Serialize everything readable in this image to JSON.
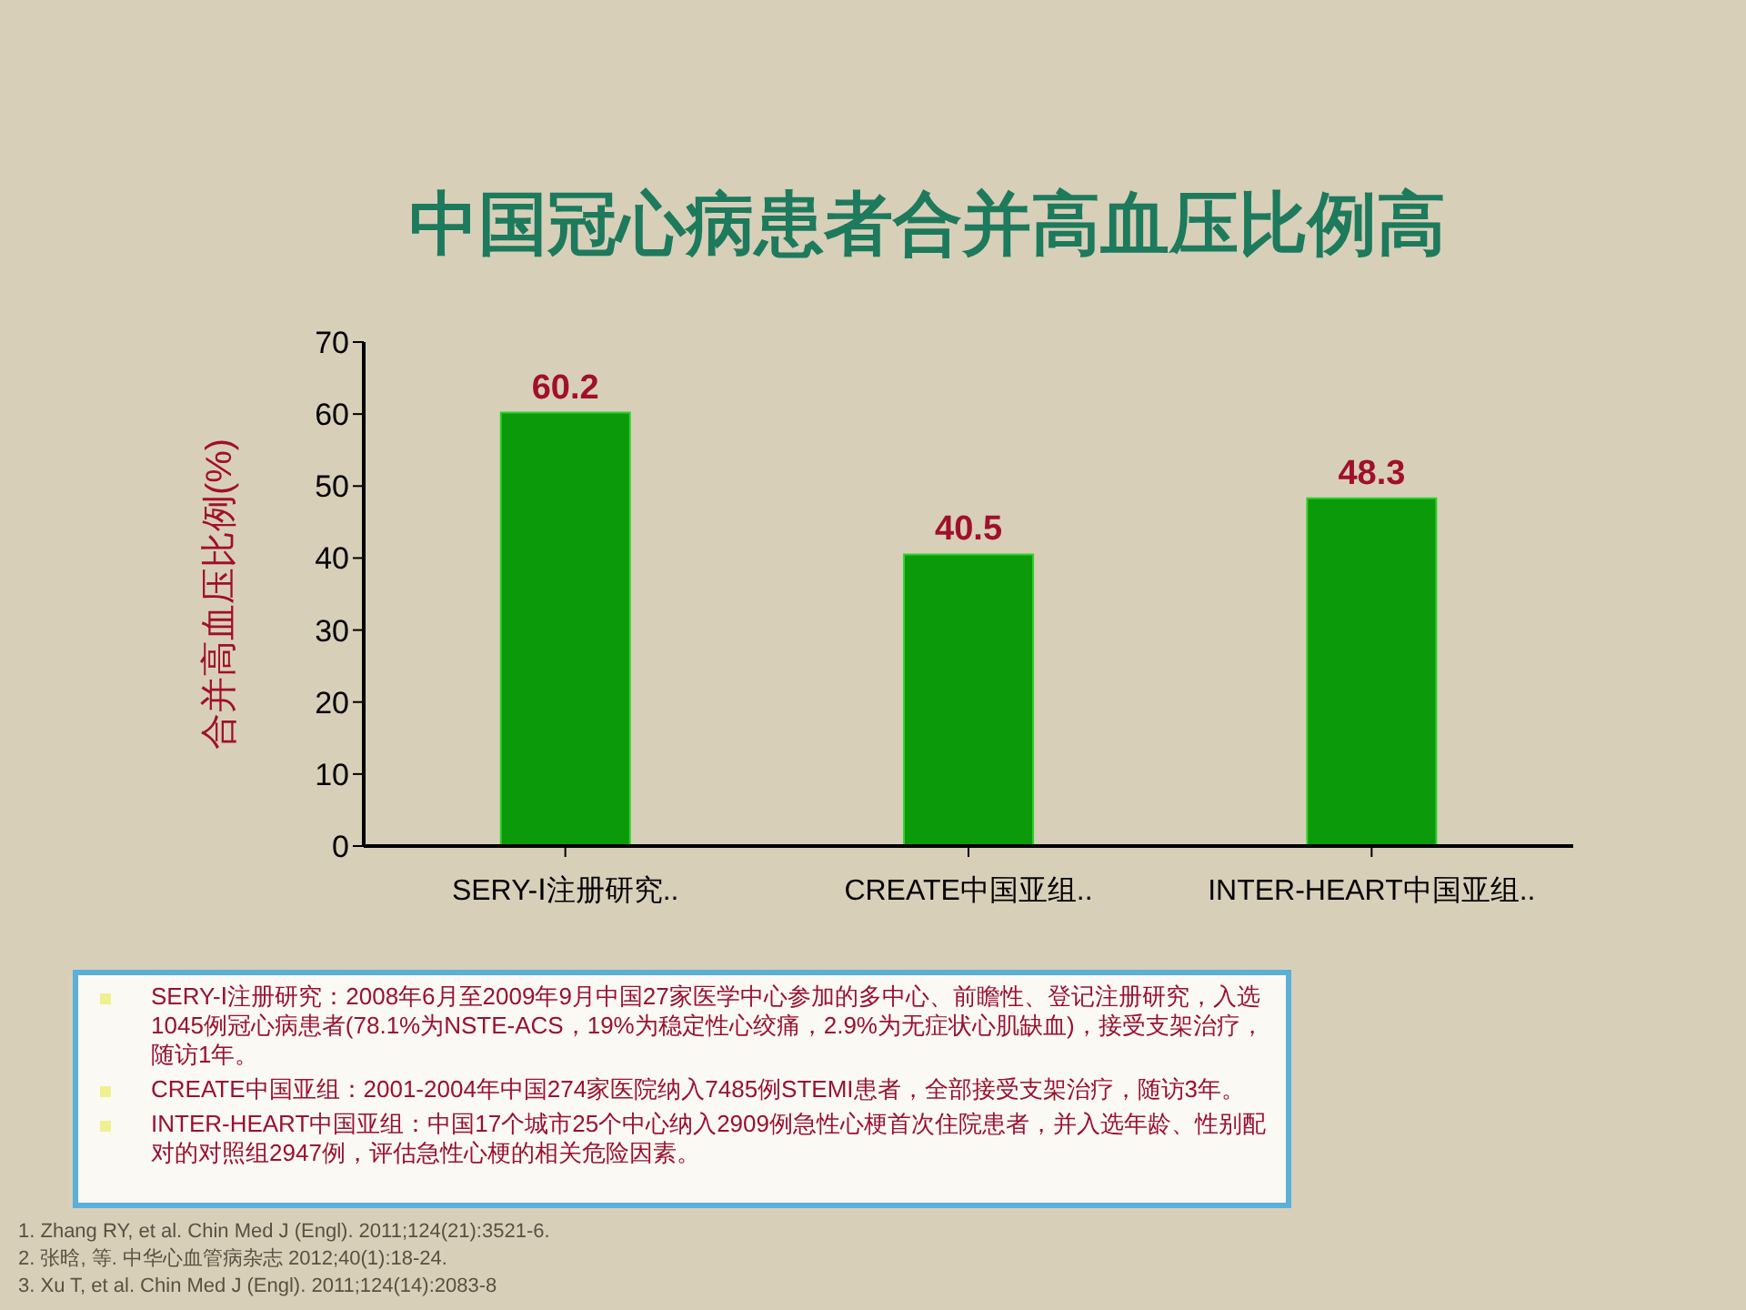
{
  "chart_data": {
    "type": "bar",
    "title": "中国冠心病患者合并高血压比例高",
    "ylabel": "合并高血压比例(%)",
    "categories": [
      "SERY-Ⅰ注册研究..",
      "CREATE中国亚组..",
      "INTER-HEART中国亚组.."
    ],
    "values": [
      60.2,
      40.5,
      48.3
    ],
    "color": "#0a9a0a",
    "ylim": [
      0,
      70
    ],
    "yticks": [
      0,
      10,
      20,
      30,
      40,
      50,
      60,
      70
    ],
    "grid": false,
    "legend": false,
    "data_labels": true,
    "annotations": [
      "SERY-Ⅰ注册研究：2008年6月至2009年9月中国27家医学中心参加的多中心、前瞻性、登记注册研究，入选1045例冠心病患者(78.1%为NSTE-ACS，19%为稳定性心绞痛，2.9%为无症状心肌缺血)，接受支架治疗，随访1年。",
      "CREATE中国亚组：2001-2004年中国274家医院纳入7485例STEMI患者，全部接受支架治疗，随访3年。",
      "INTER-HEART中国亚组：中国17个城市25个中心纳入2909例急性心梗首次住院患者，并入选年龄、性别配对的对照组2947例，评估急性心梗的相关危险因素。",
      "1.   Zhang RY, et al. Chin Med J (Engl). 2011;124(21):3521-6.",
      "2.   张晗, 等. 中华心血管病杂志 2012;40(1):18-24.",
      "3.   Xu T, et al. Chin Med J (Engl). 2011;124(14):2083-8"
    ]
  }
}
